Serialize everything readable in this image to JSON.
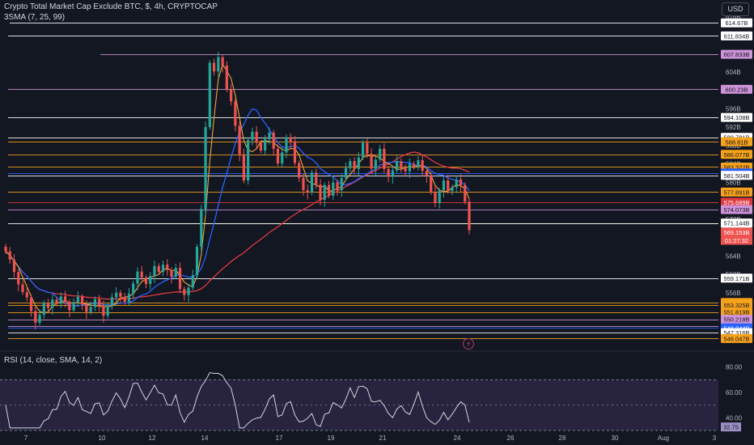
{
  "header": {
    "title": "Crypto Total Market Cap Exclude BTC, $, 4h, CRYPTOCAP",
    "indicator": "3SMA (7, 25, 99)",
    "rsi_label": "RSI (14, close, SMA, 14, 2)",
    "currency_button": "USD"
  },
  "colors": {
    "background": "#131722",
    "up": "#26a69a",
    "down": "#ef5350",
    "sma7": "#f0a53a",
    "sma25": "#2962ff",
    "sma99": "#e0393e",
    "rsi_line": "#d1d4dc",
    "rsi_band": "#3b2f57"
  },
  "chart_data": [
    {
      "type": "candlestick",
      "title": "Crypto Total Market Cap Exclude BTC, $, 4h, CRYPTOCAP",
      "ylim": [
        544,
        617
      ],
      "y_ticks": [
        "616B",
        "612B",
        "608B",
        "604B",
        "600B",
        "596B",
        "592B",
        "588B",
        "584B",
        "580B",
        "576B",
        "572B",
        "568B",
        "564B",
        "560B",
        "556B",
        "552B",
        "548B"
      ],
      "x_ticks": [
        "7",
        "10",
        "12",
        "14",
        "17",
        "19",
        "21",
        "24",
        "26",
        "28",
        "30",
        "Aug",
        "3"
      ],
      "ohlc_closes": [
        565.0,
        563.2,
        560.5,
        557.8,
        556.1,
        555.0,
        552.0,
        549.5,
        551.2,
        553.8,
        552.7,
        554.5,
        553.6,
        555.2,
        554.0,
        552.2,
        553.9,
        555.1,
        553.4,
        551.8,
        552.9,
        554.6,
        553.1,
        551.0,
        553.2,
        555.0,
        556.0,
        555.1,
        554.0,
        555.8,
        558.0,
        560.6,
        559.3,
        557.9,
        559.6,
        561.8,
        560.5,
        562.1,
        560.9,
        559.5,
        561.4,
        556.8,
        555.5,
        557.1,
        559.8,
        566.0,
        574.2,
        592.0,
        606.0,
        604.1,
        607.2,
        605.4,
        600.2,
        597.6,
        592.3,
        586.1,
        580.4,
        589.2,
        591.0,
        588.6,
        586.9,
        589.4,
        590.8,
        587.3,
        584.1,
        586.5,
        589.8,
        588.9,
        584.2,
        581.0,
        578.3,
        577.8,
        582.1,
        579.5,
        576.2,
        579.4,
        577.1,
        580.0,
        578.3,
        580.9,
        583.1,
        584.6,
        582.9,
        585.4,
        588.6,
        586.2,
        583.0,
        584.9,
        587.3,
        582.9,
        581.2,
        582.6,
        584.6,
        583.0,
        582.4,
        584.0,
        583.4,
        584.8,
        582.5,
        581.4,
        577.9,
        575.5,
        578.2,
        580.4,
        578.1,
        578.9,
        580.6,
        579.4,
        575.8,
        569.6
      ],
      "price_levels": [
        {
          "value": "614.67B",
          "color": "#ffffff"
        },
        {
          "value": "611.834B",
          "color": "#ffffff"
        },
        {
          "value": "607.833B",
          "color": "#ce93d8"
        },
        {
          "value": "600.23B",
          "color": "#ce93d8"
        },
        {
          "value": "594.108B",
          "color": "#ffffff"
        },
        {
          "value": "589.781B",
          "color": "#ffffff"
        },
        {
          "value": "588.81B",
          "color": "#f7a21b"
        },
        {
          "value": "586.077B",
          "color": "#f7a21b"
        },
        {
          "value": "583.322B",
          "color": "#f7a21b"
        },
        {
          "value": "582.045B",
          "color": "#2962ff"
        },
        {
          "value": "581.504B",
          "color": "#ffffff"
        },
        {
          "value": "577.891B",
          "color": "#f7a21b"
        },
        {
          "value": "575.689B",
          "color": "#e0393e"
        },
        {
          "value": "574.073B",
          "color": "#ce93d8"
        },
        {
          "value": "571.126B",
          "color": "#ffe082"
        },
        {
          "value": "571.144B",
          "color": "#ffffff"
        },
        {
          "value": "569.153B",
          "color": "#ef5350"
        },
        {
          "value": "559.171B",
          "color": "#ffffff"
        },
        {
          "value": "553.879B",
          "color": "#f7a21b"
        },
        {
          "value": "553.325B",
          "color": "#f7a21b"
        },
        {
          "value": "551.819B",
          "color": "#f7a21b"
        },
        {
          "value": "550.218B",
          "color": "#ce93d8"
        },
        {
          "value": "548.764B",
          "color": "#ce93d8"
        },
        {
          "value": "548.344B",
          "color": "#2962ff"
        },
        {
          "value": "547.316B",
          "color": "#ffffff"
        },
        {
          "value": "546.047B",
          "color": "#f7a21b"
        }
      ],
      "countdown": "01:27:32",
      "last_price": "569.153B"
    },
    {
      "type": "line",
      "title": "RSI (14, close, SMA, 14, 2)",
      "ylim": [
        30,
        90
      ],
      "y_ticks": [
        "80.00",
        "60.00",
        "40.00"
      ],
      "band": [
        30,
        70
      ],
      "last_value": "32.75"
    }
  ]
}
